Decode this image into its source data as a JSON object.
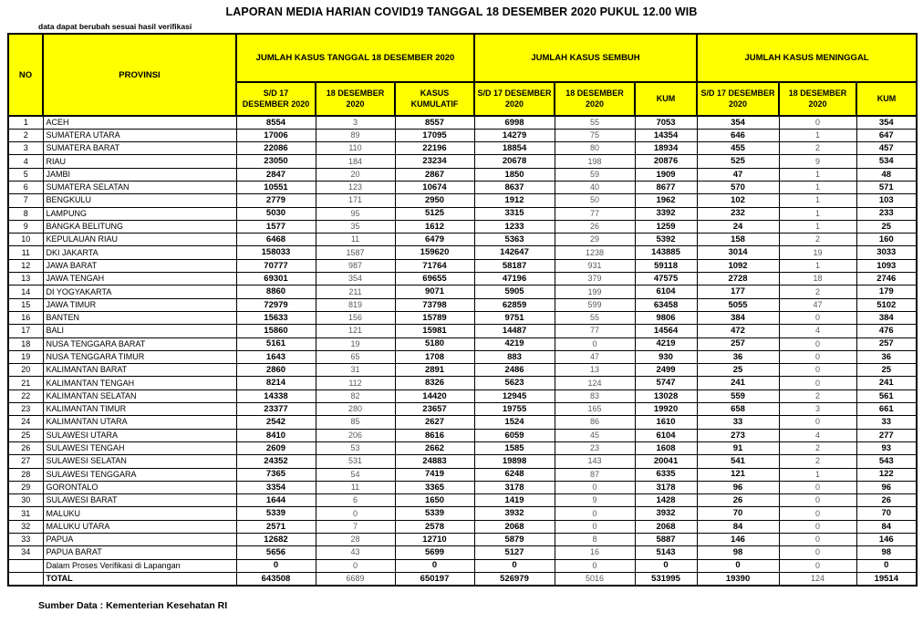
{
  "title": "LAPORAN MEDIA HARIAN COVID19 TANGGAL 18 DESEMBER 2020 PUKUL 12.00 WIB",
  "note": "data dapat berubah sesuai hasil verifikasi",
  "footer": "Sumber Data : Kementerian Kesehatan RI",
  "colors": {
    "header_bg": "#FFFF00",
    "border": "#000000",
    "muted_text": "#595959"
  },
  "table": {
    "headers": {
      "no": "NO",
      "provinsi": "PROVINSI",
      "groups": [
        {
          "label": "JUMLAH KASUS TANGGAL 18 DESEMBER 2020",
          "sub": [
            "S/D 17 DESEMBER 2020",
            "18 DESEMBER 2020",
            "KASUS KUMULATIF"
          ]
        },
        {
          "label": "JUMLAH KASUS SEMBUH",
          "sub": [
            "S/D 17 DESEMBER 2020",
            "18 DESEMBER 2020",
            "KUM"
          ]
        },
        {
          "label": "JUMLAH KASUS MENINGGAL",
          "sub": [
            "S/D 17 DESEMBER 2020",
            "18 DESEMBER 2020",
            "KUM"
          ]
        }
      ]
    },
    "total_label": "TOTAL",
    "rows": [
      [
        "1",
        "ACEH",
        "8554",
        "3",
        "8557",
        "6998",
        "55",
        "7053",
        "354",
        "0",
        "354"
      ],
      [
        "2",
        "SUMATERA UTARA",
        "17006",
        "89",
        "17095",
        "14279",
        "75",
        "14354",
        "646",
        "1",
        "647"
      ],
      [
        "3",
        "SUMATERA BARAT",
        "22086",
        "110",
        "22196",
        "18854",
        "80",
        "18934",
        "455",
        "2",
        "457"
      ],
      [
        "4",
        "RIAU",
        "23050",
        "184",
        "23234",
        "20678",
        "198",
        "20876",
        "525",
        "9",
        "534"
      ],
      [
        "5",
        "JAMBI",
        "2847",
        "20",
        "2867",
        "1850",
        "59",
        "1909",
        "47",
        "1",
        "48"
      ],
      [
        "6",
        "SUMATERA SELATAN",
        "10551",
        "123",
        "10674",
        "8637",
        "40",
        "8677",
        "570",
        "1",
        "571"
      ],
      [
        "7",
        "BENGKULU",
        "2779",
        "171",
        "2950",
        "1912",
        "50",
        "1962",
        "102",
        "1",
        "103"
      ],
      [
        "8",
        "LAMPUNG",
        "5030",
        "95",
        "5125",
        "3315",
        "77",
        "3392",
        "232",
        "1",
        "233"
      ],
      [
        "9",
        "BANGKA BELITUNG",
        "1577",
        "35",
        "1612",
        "1233",
        "26",
        "1259",
        "24",
        "1",
        "25"
      ],
      [
        "10",
        "KEPULAUAN RIAU",
        "6468",
        "11",
        "6479",
        "5363",
        "29",
        "5392",
        "158",
        "2",
        "160"
      ],
      [
        "11",
        "DKI JAKARTA",
        "158033",
        "1587",
        "159620",
        "142647",
        "1238",
        "143885",
        "3014",
        "19",
        "3033"
      ],
      [
        "12",
        "JAWA BARAT",
        "70777",
        "987",
        "71764",
        "58187",
        "931",
        "59118",
        "1092",
        "1",
        "1093"
      ],
      [
        "13",
        "JAWA TENGAH",
        "69301",
        "354",
        "69655",
        "47196",
        "379",
        "47575",
        "2728",
        "18",
        "2746"
      ],
      [
        "14",
        "DI YOGYAKARTA",
        "8860",
        "211",
        "9071",
        "5905",
        "199",
        "6104",
        "177",
        "2",
        "179"
      ],
      [
        "15",
        "JAWA TIMUR",
        "72979",
        "819",
        "73798",
        "62859",
        "599",
        "63458",
        "5055",
        "47",
        "5102"
      ],
      [
        "16",
        "BANTEN",
        "15633",
        "156",
        "15789",
        "9751",
        "55",
        "9806",
        "384",
        "0",
        "384"
      ],
      [
        "17",
        "BALI",
        "15860",
        "121",
        "15981",
        "14487",
        "77",
        "14564",
        "472",
        "4",
        "476"
      ],
      [
        "18",
        "NUSA TENGGARA BARAT",
        "5161",
        "19",
        "5180",
        "4219",
        "0",
        "4219",
        "257",
        "0",
        "257"
      ],
      [
        "19",
        "NUSA TENGGARA TIMUR",
        "1643",
        "65",
        "1708",
        "883",
        "47",
        "930",
        "36",
        "0",
        "36"
      ],
      [
        "20",
        "KALIMANTAN BARAT",
        "2860",
        "31",
        "2891",
        "2486",
        "13",
        "2499",
        "25",
        "0",
        "25"
      ],
      [
        "21",
        "KALIMANTAN TENGAH",
        "8214",
        "112",
        "8326",
        "5623",
        "124",
        "5747",
        "241",
        "0",
        "241"
      ],
      [
        "22",
        "KALIMANTAN SELATAN",
        "14338",
        "82",
        "14420",
        "12945",
        "83",
        "13028",
        "559",
        "2",
        "561"
      ],
      [
        "23",
        "KALIMANTAN TIMUR",
        "23377",
        "280",
        "23657",
        "19755",
        "165",
        "19920",
        "658",
        "3",
        "661"
      ],
      [
        "24",
        "KALIMANTAN UTARA",
        "2542",
        "85",
        "2627",
        "1524",
        "86",
        "1610",
        "33",
        "0",
        "33"
      ],
      [
        "25",
        "SULAWESI UTARA",
        "8410",
        "206",
        "8616",
        "6059",
        "45",
        "6104",
        "273",
        "4",
        "277"
      ],
      [
        "26",
        "SULAWESI TENGAH",
        "2609",
        "53",
        "2662",
        "1585",
        "23",
        "1608",
        "91",
        "2",
        "93"
      ],
      [
        "27",
        "SULAWESI SELATAN",
        "24352",
        "531",
        "24883",
        "19898",
        "143",
        "20041",
        "541",
        "2",
        "543"
      ],
      [
        "28",
        "SULAWESI TENGGARA",
        "7365",
        "54",
        "7419",
        "6248",
        "87",
        "6335",
        "121",
        "1",
        "122"
      ],
      [
        "29",
        "GORONTALO",
        "3354",
        "11",
        "3365",
        "3178",
        "0",
        "3178",
        "96",
        "0",
        "96"
      ],
      [
        "30",
        "SULAWESI BARAT",
        "1644",
        "6",
        "1650",
        "1419",
        "9",
        "1428",
        "26",
        "0",
        "26"
      ],
      [
        "31",
        "MALUKU",
        "5339",
        "0",
        "5339",
        "3932",
        "0",
        "3932",
        "70",
        "0",
        "70"
      ],
      [
        "32",
        "MALUKU UTARA",
        "2571",
        "7",
        "2578",
        "2068",
        "0",
        "2068",
        "84",
        "0",
        "84"
      ],
      [
        "33",
        "PAPUA",
        "12682",
        "28",
        "12710",
        "5879",
        "8",
        "5887",
        "146",
        "0",
        "146"
      ],
      [
        "34",
        "PAPUA BARAT",
        "5656",
        "43",
        "5699",
        "5127",
        "16",
        "5143",
        "98",
        "0",
        "98"
      ],
      [
        "",
        "Dalam Proses Verifikasi di Lapangan",
        "0",
        "0",
        "0",
        "0",
        "0",
        "0",
        "0",
        "0",
        "0"
      ],
      [
        "",
        "TOTAL",
        "643508",
        "6689",
        "650197",
        "526979",
        "5016",
        "531995",
        "19390",
        "124",
        "19514"
      ]
    ]
  }
}
